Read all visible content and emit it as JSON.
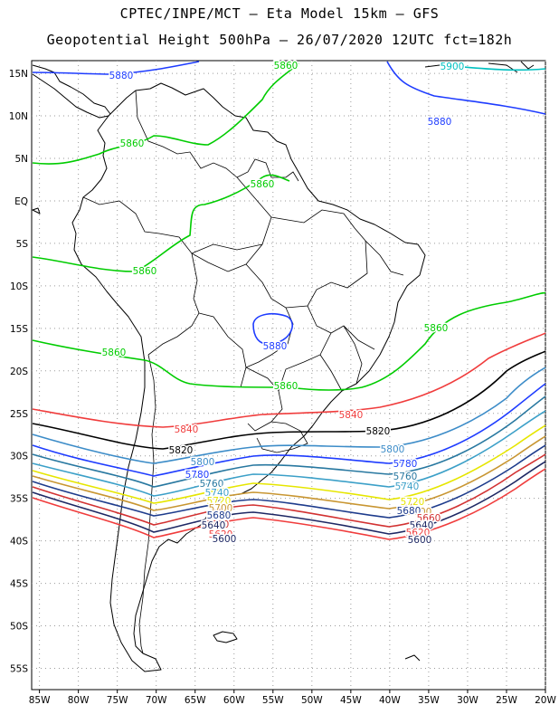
{
  "title_line1": "CPTEC/INPE/MCT –  Eta Model 15km – GFS",
  "title_line2": "Geopotential Height 500hPa – 26/07/2020 12UTC fct=182h",
  "lon_ticks": [
    "85W",
    "80W",
    "75W",
    "70W",
    "65W",
    "60W",
    "55W",
    "50W",
    "45W",
    "40W",
    "35W",
    "30W",
    "25W",
    "20W"
  ],
  "lat_ticks": [
    "15N",
    "10N",
    "5N",
    "EQ",
    "5S",
    "10S",
    "15S",
    "20S",
    "25S",
    "30S",
    "35S",
    "40S",
    "45S",
    "50S",
    "55S"
  ],
  "lon_range": [
    -86,
    -20
  ],
  "lat_range": [
    16.5,
    -57.5
  ],
  "colors": {
    "c5900": "#00c0c0",
    "c5880": "#1e3cff",
    "c5860": "#00cc00",
    "c5840": "#f03c3c",
    "c5820": "#000000",
    "c5800": "#3c8cc8",
    "c5780": "#1e3cff",
    "c5760": "#2878a0",
    "c5740": "#3ca0c8",
    "c5720": "#e6e600",
    "c5700": "#c89632",
    "c5680": "#1e3c8c",
    "c5660": "#d23232",
    "c5640": "#1e2864",
    "coast": "#000000",
    "grid": "#9a9a9a"
  },
  "contour_labels": [
    {
      "text": "5900",
      "color": "c5900"
    },
    {
      "text": "5880",
      "color": "c5880"
    },
    {
      "text": "5880",
      "color": "c5880"
    },
    {
      "text": "5880",
      "color": "c5880"
    },
    {
      "text": "5860",
      "color": "c5860"
    },
    {
      "text": "5860",
      "color": "c5860"
    },
    {
      "text": "5860",
      "color": "c5860"
    },
    {
      "text": "5860",
      "color": "c5860"
    },
    {
      "text": "5860",
      "color": "c5860"
    },
    {
      "text": "5860",
      "color": "c5860"
    },
    {
      "text": "5860",
      "color": "c5860"
    },
    {
      "text": "5840",
      "color": "c5840"
    },
    {
      "text": "5840",
      "color": "c5840"
    },
    {
      "text": "5820",
      "color": "c5820"
    },
    {
      "text": "5820",
      "color": "c5820"
    },
    {
      "text": "5800",
      "color": "c5800"
    },
    {
      "text": "5800",
      "color": "c5800"
    },
    {
      "text": "5780",
      "color": "c5780"
    },
    {
      "text": "5780",
      "color": "c5780"
    },
    {
      "text": "5760",
      "color": "c5760"
    },
    {
      "text": "5760",
      "color": "c5760"
    },
    {
      "text": "5740",
      "color": "c5740"
    },
    {
      "text": "5740",
      "color": "c5740"
    },
    {
      "text": "5720",
      "color": "c5720"
    },
    {
      "text": "5720",
      "color": "c5720"
    },
    {
      "text": "5700",
      "color": "c5700"
    },
    {
      "text": "5700",
      "color": "c5700"
    },
    {
      "text": "5680",
      "color": "c5680"
    },
    {
      "text": "5680",
      "color": "c5680"
    },
    {
      "text": "5660",
      "color": "c5660"
    },
    {
      "text": "5660",
      "color": "c5660"
    },
    {
      "text": "5640",
      "color": "c5640"
    },
    {
      "text": "5640",
      "color": "c5640"
    },
    {
      "text": "5620",
      "color": "c5840"
    },
    {
      "text": "5620",
      "color": "c5840"
    },
    {
      "text": "5600",
      "color": "c5640"
    },
    {
      "text": "5600",
      "color": "c5640"
    }
  ]
}
